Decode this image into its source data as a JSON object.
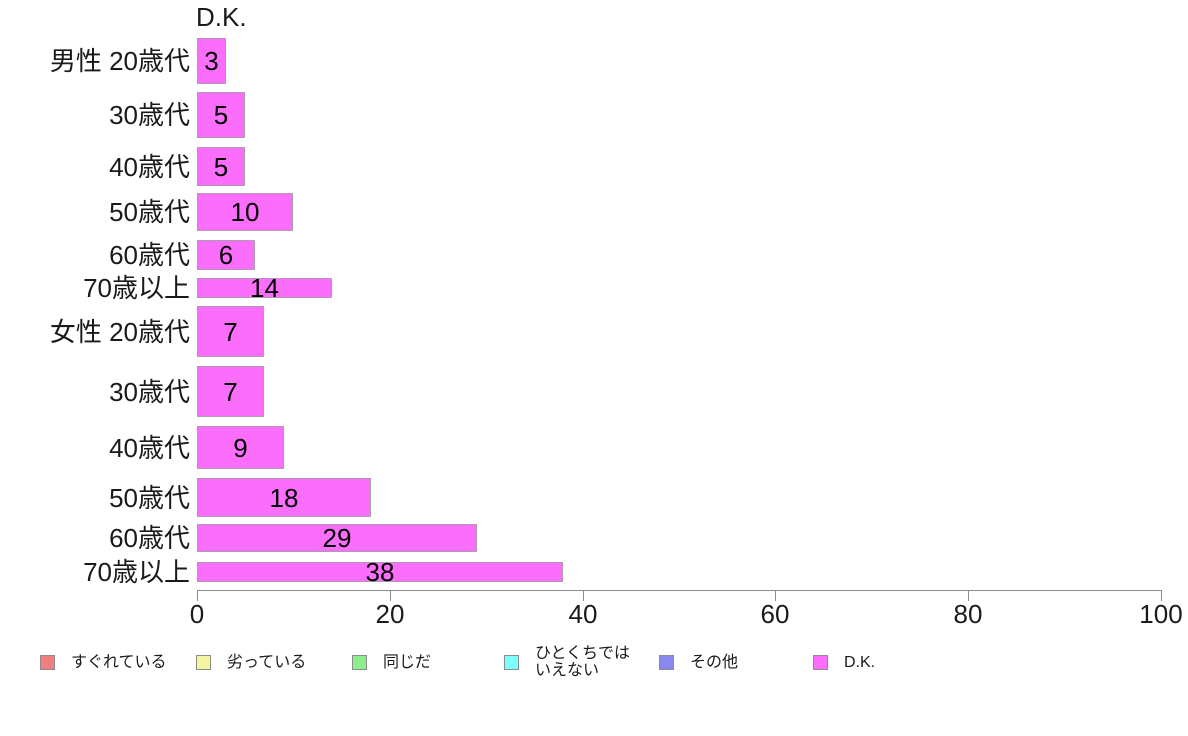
{
  "chart_data": {
    "type": "bar",
    "orientation": "horizontal",
    "title": "D.K.",
    "categories": [
      "男性 20歳代",
      "30歳代",
      "40歳代",
      "50歳代",
      "60歳代",
      "70歳以上",
      "女性 20歳代",
      "30歳代",
      "40歳代",
      "50歳代",
      "60歳代",
      "70歳以上"
    ],
    "values": [
      3,
      5,
      5,
      10,
      6,
      14,
      7,
      7,
      9,
      18,
      29,
      38
    ],
    "value_labels_shown": true,
    "xlabel": "",
    "ylabel": "",
    "xlim": [
      0,
      100
    ],
    "x_ticks": [
      0,
      20,
      40,
      60,
      80,
      100
    ],
    "grid": false,
    "legend_position": "bottom",
    "legend": [
      {
        "label": "すぐれている",
        "lines": [
          "すぐれている"
        ],
        "color": "#F08080"
      },
      {
        "label": "劣っている",
        "lines": [
          "劣っている"
        ],
        "color": "#F5F5A0"
      },
      {
        "label": "同じだ",
        "lines": [
          "同じだ"
        ],
        "color": "#8CEE8C"
      },
      {
        "label": "ひとくちではいえない",
        "lines": [
          "ひとくちでは",
          "いえない"
        ],
        "color": "#7DFFFF"
      },
      {
        "label": "その他",
        "lines": [
          "その他"
        ],
        "color": "#8888EE"
      },
      {
        "label": "D.K.",
        "lines": [
          "D.K."
        ],
        "color": "#FB6EFB"
      }
    ],
    "colors": {
      "bar_fill": "#FB6EFB",
      "bar_border": "#B09AB0",
      "axis": "#8C8C8C",
      "text": "#1A1A1A",
      "background": "#FFFFFF"
    }
  }
}
